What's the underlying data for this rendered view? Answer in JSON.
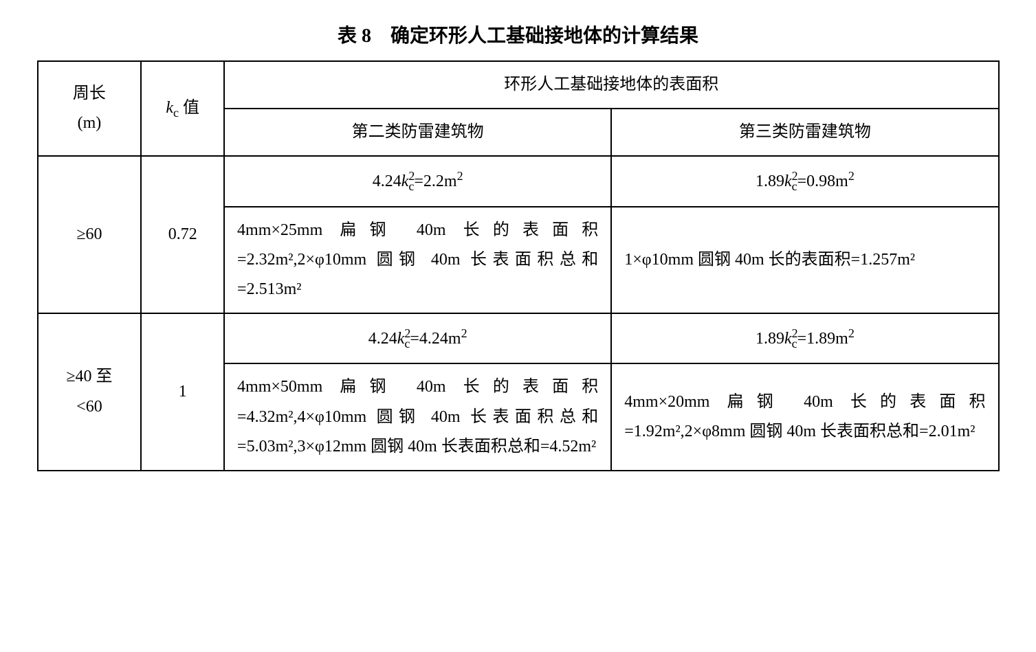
{
  "title": "表 8　确定环形人工基础接地体的计算结果",
  "headers": {
    "perimeter_label_line1": "周长",
    "perimeter_label_line2": "(m)",
    "kc_label_prefix": "k",
    "kc_label_sub": "c",
    "kc_label_suffix": " 值",
    "surface_area_label": "环形人工基础接地体的表面积",
    "cat2_label": "第二类防雷建筑物",
    "cat3_label": "第三类防雷建筑物"
  },
  "rows": [
    {
      "perimeter": "≥60",
      "kc": "0.72",
      "cat2_formula_prefix": "4.24",
      "cat2_formula_k": "k",
      "cat2_formula_sub": "c",
      "cat2_formula_sup": "2",
      "cat2_formula_eq": "=2.2m",
      "cat2_formula_unit_sup": "2",
      "cat3_formula_prefix": "1.89",
      "cat3_formula_k": "k",
      "cat3_formula_sub": "c",
      "cat3_formula_sup": "2",
      "cat3_formula_eq": "=0.98m",
      "cat3_formula_unit_sup": "2",
      "cat2_detail": "4mm×25mm 扁钢 40m 长的表面积=2.32m²,2×φ10mm 圆钢 40m 长表面积总和=2.513m²",
      "cat3_detail": "1×φ10mm 圆钢 40m 长的表面积=1.257m²"
    },
    {
      "perimeter_line1": "≥40 至",
      "perimeter_line2": "<60",
      "kc": "1",
      "cat2_formula_prefix": "4.24",
      "cat2_formula_k": "k",
      "cat2_formula_sub": "c",
      "cat2_formula_sup": "2",
      "cat2_formula_eq": "=4.24m",
      "cat2_formula_unit_sup": "2",
      "cat3_formula_prefix": "1.89",
      "cat3_formula_k": "k",
      "cat3_formula_sub": "c",
      "cat3_formula_sup": "2",
      "cat3_formula_eq": "=1.89m",
      "cat3_formula_unit_sup": "2",
      "cat2_detail": "4mm×50mm 扁钢 40m 长的表面积=4.32m²,4×φ10mm 圆钢 40m 长表面积总和=5.03m²,3×φ12mm 圆钢 40m 长表面积总和=4.52m²",
      "cat3_detail": "4mm×20mm 扁钢 40m 长的表面积=1.92m²,2×φ8mm 圆钢 40m 长表面积总和=2.01m²"
    }
  ],
  "style": {
    "background_color": "#ffffff",
    "text_color": "#000000",
    "border_color": "#000000",
    "title_fontsize": 28,
    "cell_fontsize": 24,
    "font_family_cjk": "SimSun",
    "font_family_math": "Times New Roman"
  }
}
